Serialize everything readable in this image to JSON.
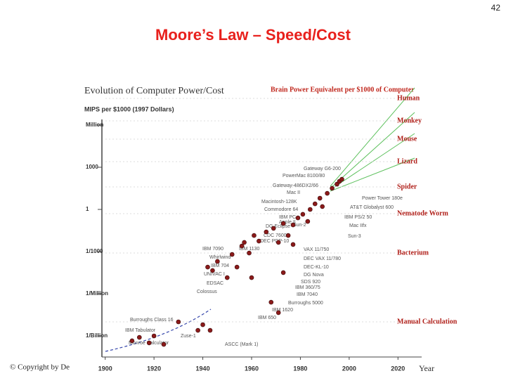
{
  "page_number": "42",
  "slide_title": "Moore’s Law – Speed/Cost",
  "copyright": "© Copyright by De",
  "chart_data": {
    "type": "scatter",
    "title": "Evolution of Computer Power/Cost",
    "y_label": "MIPS per $1000 (1997 Dollars)",
    "x_label": "Year",
    "right_title": "Brain Power Equivalent per $1000 of Computer",
    "log_scale_y": true,
    "color": "#8b1a1a",
    "xlim": [
      1890,
      2030
    ],
    "xticks": [
      1900,
      1920,
      1940,
      1960,
      1980,
      2000,
      2020
    ],
    "ylim": [
      1e-10,
      10000000.0
    ],
    "yticks": [
      {
        "value": 1000000,
        "label": "Million"
      },
      1000,
      1,
      {
        "value": 0.001,
        "label": "1/1000"
      },
      {
        "value": 1e-06,
        "label": "1/Million"
      },
      {
        "value": 1e-09,
        "label": "1/Billion"
      }
    ],
    "x": [
      1911,
      1914,
      1918,
      1920,
      1924,
      1930,
      1938,
      1940,
      1943,
      1942,
      1944,
      1946,
      1950,
      1952,
      1954,
      1956,
      1957,
      1959,
      1961,
      1963,
      1966,
      1969,
      1971,
      1973,
      1975,
      1977,
      1979,
      1981,
      1983,
      1984,
      1986,
      1988,
      1989,
      1991,
      1993,
      1995,
      1996,
      1997,
      1977,
      1973,
      1968,
      1971,
      1960
    ],
    "values": [
      4.5e-10,
      7.9e-10,
      3.2e-10,
      1e-09,
      2.5e-10,
      1e-08,
      2.5e-09,
      6.3e-09,
      2.5e-09,
      7.9e-05,
      4.5e-05,
      0.0002,
      1.4e-05,
      0.00063,
      7.9e-05,
      0.0025,
      0.0045,
      0.00079,
      0.014,
      0.0056,
      0.025,
      0.045,
      0.0045,
      0.1,
      0.014,
      0.079,
      0.25,
      0.45,
      0.14,
      1,
      2.5,
      6.3,
      1.6,
      14,
      32,
      63,
      100,
      140,
      0.0032,
      3.2e-05,
      2.5e-07,
      4.5e-08,
      1.4e-05
    ],
    "annotations": [
      "Gateway G6-200",
      "PowerMac 8100/80",
      "Gateway-486DX2/66",
      "Mac II",
      "Macintosh-128K",
      "Commodore 64",
      "IBM PC",
      "Apple II",
      "Sun-2",
      "DG Eclipse",
      "CDC 7600",
      "DEC PDP-10",
      "IBM 7090",
      "IBM 1130",
      "Whirlwind",
      "IBM 704",
      "UNIVAC I",
      "EDSAC",
      "Colossus",
      "Burroughs Class 16",
      "IBM Tabulator",
      "Monroe Calculator",
      "Zuse-1",
      "ASCC (Mark 1)",
      "Power Tower 180e",
      "AT&T Globalyst 600",
      "IBM PS/2 50",
      "Mac IIfx",
      "Sun-3",
      "VAX 11/750",
      "DEC VAX 11/780",
      "DEC-KL-10",
      "DG Nova",
      "SDS 920",
      "IBM 360/75",
      "IBM 7040",
      "Burroughs 5000",
      "IBM 1620",
      "IBM 650"
    ],
    "brain_labels": [
      "Human",
      "Monkey",
      "Mouse",
      "Lizard",
      "Spider",
      "Nematode Worm",
      "Bacterium",
      "Manual Calculation"
    ]
  }
}
